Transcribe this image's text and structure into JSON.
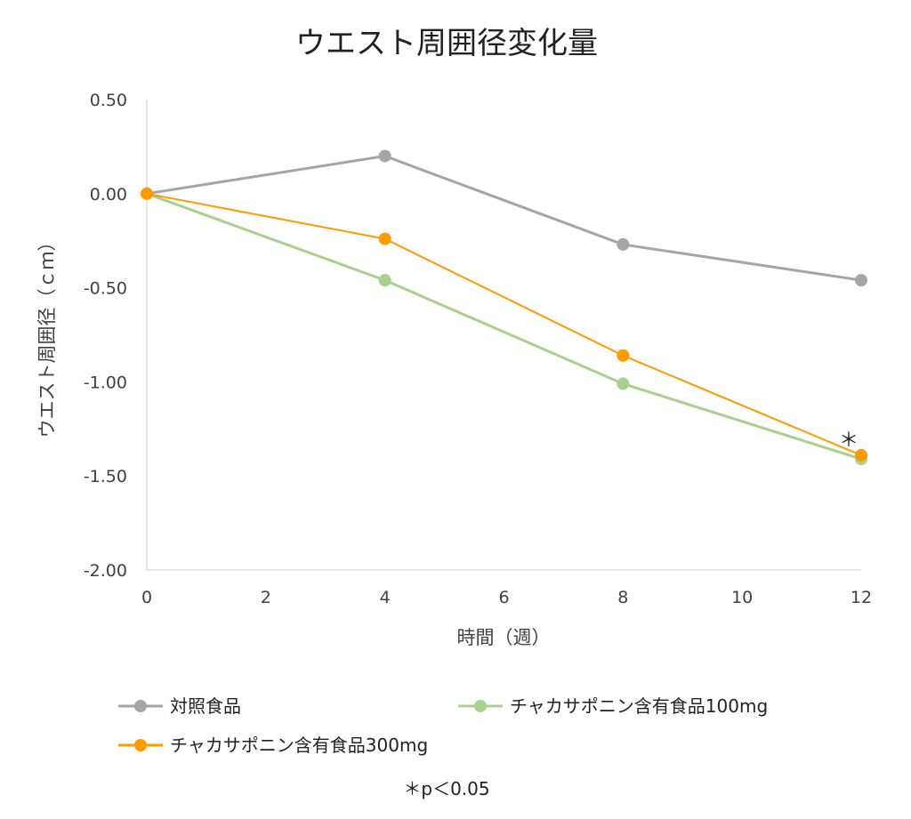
{
  "chart_data": {
    "type": "line",
    "title": "ウエスト周囲径変化量",
    "xlabel": "時間（週）",
    "ylabel": "ウエスト周囲径（ｃｍ）",
    "xlim": [
      0,
      12
    ],
    "ylim": [
      -2.0,
      0.5
    ],
    "x_ticks": [
      "0",
      "2",
      "4",
      "6",
      "8",
      "10",
      "12"
    ],
    "y_ticks": [
      "0.50",
      "0.00",
      "-0.50",
      "-1.00",
      "-1.50",
      "-2.00"
    ],
    "grid": false,
    "legend_position": "bottom",
    "series": [
      {
        "name": "対照食品",
        "color": "#a5a5a5",
        "x": [
          0,
          4,
          8,
          12
        ],
        "y": [
          0.0,
          0.2,
          -0.27,
          -0.46
        ]
      },
      {
        "name": "チャカサポニン含有食品100mg",
        "color": "#a9d18e",
        "x": [
          0,
          4,
          8,
          12
        ],
        "y": [
          0.0,
          -0.46,
          -1.01,
          -1.41
        ]
      },
      {
        "name": "チャカサポニン含有食品300mg",
        "color": "#ff9a00",
        "x": [
          0,
          4,
          8,
          12
        ],
        "y": [
          0.0,
          -0.24,
          -0.86,
          -1.39
        ]
      }
    ],
    "annotations": [
      {
        "text": "＊",
        "x": 12,
        "y": -1.39
      }
    ],
    "footnote": "＊p＜0.05"
  }
}
